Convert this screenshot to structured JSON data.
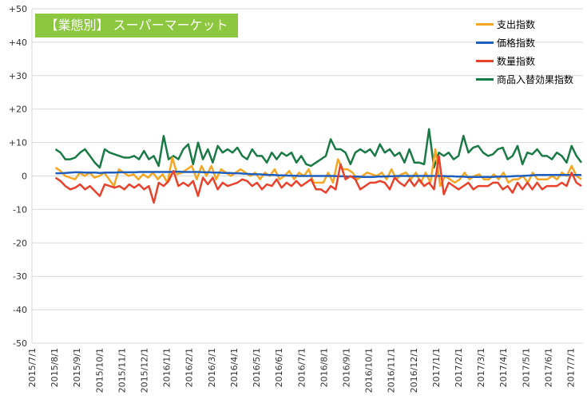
{
  "chart_data": {
    "type": "line",
    "title": "【業態別】 スーパーマーケット",
    "ylim": [
      -50,
      50
    ],
    "y_ticks": [
      "+50",
      "+40",
      "+30",
      "+20",
      "+10",
      "0",
      "-10",
      "-20",
      "-30",
      "-40",
      "-50"
    ],
    "x_ticks": [
      "2015/7/1",
      "2015/8/1",
      "2015/9/1",
      "2015/10/1",
      "2015/11/1",
      "2015/12/1",
      "2016/1/1",
      "2016/2/1",
      "2016/3/1",
      "2016/4/1",
      "2016/5/1",
      "2016/6/1",
      "2016/7/1",
      "2016/8/1",
      "2016/9/1",
      "2016/10/1",
      "2016/11/1",
      "2016/12/1",
      "2017/1/1",
      "2017/2/1",
      "2017/3/1",
      "2017/4/1",
      "2017/5/1",
      "2017/6/1",
      "2017/7/1"
    ],
    "grid": true,
    "legend_position": "top-right",
    "series": [
      {
        "name": "支出指数",
        "color": "#f5a623",
        "values": [
          2.5,
          1.5,
          0,
          -0.5,
          -1,
          1,
          0,
          1,
          -0.5,
          0,
          1,
          -1,
          -3,
          2,
          1,
          0,
          0.5,
          -1,
          0.5,
          -0.5,
          1,
          -1,
          0.5,
          -2,
          5.5,
          0.5,
          1,
          2,
          3,
          -1,
          3,
          0,
          3,
          -1,
          2,
          1,
          0,
          1,
          2,
          1,
          0,
          1,
          -1,
          1,
          0,
          2,
          -1,
          0,
          1.5,
          -1,
          1,
          0,
          2,
          -2,
          -2,
          -2,
          1,
          -2,
          5,
          2,
          2,
          1,
          -1,
          0,
          1,
          0.5,
          0,
          1,
          -1,
          2,
          -1,
          0.5,
          1,
          -1,
          1,
          -2,
          1,
          -2,
          8,
          -3,
          0,
          -1,
          -2,
          -1,
          1,
          -1,
          0,
          0.5,
          -1,
          -1,
          0.5,
          -1,
          1,
          -2,
          -1,
          -1,
          0,
          -2,
          1,
          -1,
          -1,
          -1,
          0,
          -1,
          1,
          0,
          3,
          0,
          -1
        ]
      },
      {
        "name": "価格指数",
        "color": "#1f5fbf",
        "values": [
          0.8,
          0.8,
          0.9,
          1,
          1.1,
          1.1,
          1,
          1,
          1,
          0.9,
          1,
          1,
          1,
          1.1,
          1.1,
          1.1,
          1.1,
          1.2,
          1.2,
          1.2,
          1.2,
          1.2,
          1.2,
          1.2,
          1.3,
          1.3,
          1.2,
          1.2,
          1.2,
          1.2,
          1.1,
          1.1,
          1,
          1,
          0.9,
          0.9,
          0.8,
          0.8,
          0.7,
          0.6,
          0.5,
          0.5,
          0.4,
          0.3,
          0.3,
          0.2,
          0.2,
          0.1,
          0.1,
          0,
          0,
          0,
          0,
          0,
          0,
          0,
          0,
          -0.1,
          -0.1,
          -0.2,
          -0.2,
          -0.2,
          -0.3,
          -0.3,
          -0.3,
          -0.2,
          -0.2,
          -0.1,
          -0.1,
          0,
          0,
          0,
          0,
          0,
          0,
          0,
          0,
          0,
          0,
          -0.1,
          -0.1,
          -0.2,
          -0.2,
          -0.3,
          -0.3,
          -0.3,
          -0.3,
          -0.3,
          -0.3,
          -0.2,
          -0.2,
          -0.2,
          -0.1,
          0,
          0,
          0.1,
          0.2,
          0.3,
          0.3,
          0.3,
          0.3,
          0.3,
          0.3,
          0.3,
          0.3,
          0.3,
          0.3
        ]
      },
      {
        "name": "数量指数",
        "color": "#e8412c",
        "values": [
          -0.5,
          -1.5,
          -3,
          -4,
          -3.5,
          -2.5,
          -4,
          -3,
          -4.5,
          -6,
          -2.5,
          -3,
          -3.5,
          -3,
          -4,
          -2.5,
          -3.5,
          -2.5,
          -4,
          -3,
          -8,
          -2,
          -3,
          -1.5,
          1.5,
          -3,
          -2,
          -3,
          -1.5,
          -6,
          -0.5,
          -2.5,
          -0.5,
          -4,
          -2,
          -3,
          -2.5,
          -2,
          -1,
          -1.5,
          -3,
          -2,
          -4,
          -2.5,
          -3,
          -1,
          -3.5,
          -2,
          -3,
          -1.5,
          -3,
          -2,
          -1,
          -4,
          -4,
          -5,
          -3,
          -4,
          3.5,
          -1,
          0,
          -1,
          -4,
          -3,
          -2,
          -2,
          -1.5,
          -2,
          -4,
          -0.5,
          -2,
          -3,
          -1,
          -3,
          -1,
          -3,
          -2,
          -4,
          6,
          -5.5,
          -2,
          -3,
          -4,
          -3,
          -2,
          -4,
          -3,
          -3,
          -3,
          -2,
          -2,
          -4,
          -3,
          -5,
          -2,
          -4,
          -2,
          -4,
          -2,
          -4,
          -3,
          -3,
          -3,
          -2,
          -3,
          1,
          -2,
          -3
        ]
      },
      {
        "name": "商品入替効果指数",
        "color": "#1a7a46",
        "values": [
          8,
          7,
          5,
          5,
          5.5,
          7,
          8,
          6,
          4,
          2.5,
          8,
          7,
          6.5,
          6,
          5.5,
          5.5,
          6,
          5,
          7.5,
          5,
          6,
          3,
          12,
          5,
          6,
          5,
          8,
          9.5,
          3.5,
          10,
          5,
          8,
          4,
          9,
          7,
          8,
          7,
          8.5,
          6,
          5,
          8,
          6,
          6,
          4,
          7,
          5,
          7,
          6,
          7,
          4,
          6,
          3.5,
          3,
          4,
          5,
          6,
          11,
          8,
          8,
          7,
          3.5,
          7,
          8,
          7,
          8,
          6,
          9.5,
          7,
          8,
          6,
          7,
          4,
          8,
          4,
          4,
          3.5,
          14,
          2.5,
          7,
          6,
          7,
          5,
          6,
          12,
          7,
          8.5,
          9,
          7,
          6,
          6.5,
          8,
          8.5,
          5,
          6,
          9,
          3.5,
          7,
          6.5,
          8,
          6,
          6,
          5,
          7,
          6,
          4,
          9,
          6,
          4
        ]
      }
    ]
  }
}
